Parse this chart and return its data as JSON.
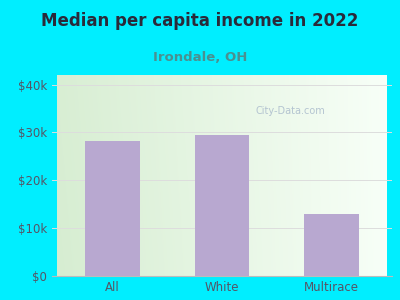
{
  "title": "Median per capita income in 2022",
  "subtitle": "Irondale, OH",
  "categories": [
    "All",
    "White",
    "Multirace"
  ],
  "values": [
    28200,
    29500,
    13000
  ],
  "bar_color": "#b8a8d0",
  "title_fontsize": 12,
  "subtitle_fontsize": 9.5,
  "tick_label_fontsize": 8.5,
  "ytick_labels": [
    "$0",
    "$10k",
    "$20k",
    "$30k",
    "$40k"
  ],
  "ytick_values": [
    0,
    10000,
    20000,
    30000,
    40000
  ],
  "ylim": [
    0,
    42000
  ],
  "background_color": "#00eeff",
  "plot_bg_left": "#d8ecd0",
  "plot_bg_right": "#f8fff8",
  "title_color": "#2a2a3a",
  "subtitle_color": "#4a9090",
  "watermark_text": "City-Data.com",
  "watermark_color": "#aabbcc",
  "grid_color": "#dddddd"
}
